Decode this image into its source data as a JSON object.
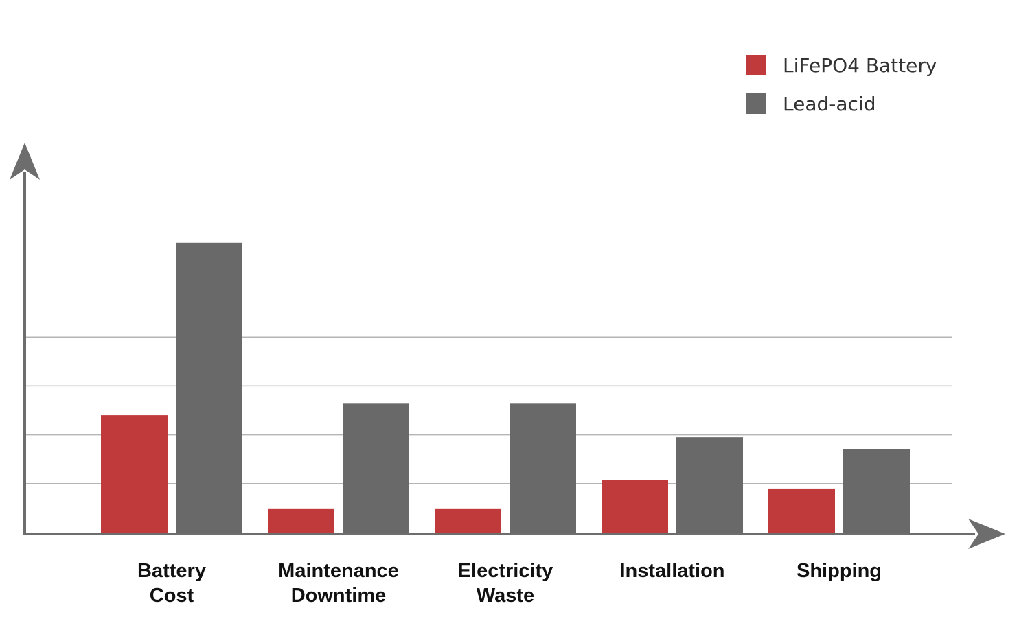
{
  "chart_data": {
    "type": "bar",
    "title": "",
    "xlabel": "",
    "ylabel": "",
    "categories": [
      [
        "Battery",
        "Cost"
      ],
      [
        "Maintenance",
        "Downtime"
      ],
      [
        "Electricity",
        "Waste"
      ],
      [
        "Installation"
      ],
      [
        "Shipping"
      ]
    ],
    "series": [
      {
        "name": "LiFePO4 Battery",
        "color": "#c0393b",
        "values": [
          2.4,
          0.48,
          0.48,
          1.07,
          0.9
        ]
      },
      {
        "name": "Lead-acid",
        "color": "#696969",
        "values": [
          5.93,
          2.65,
          2.65,
          1.95,
          1.7
        ]
      }
    ],
    "ylim": [
      0,
      8
    ],
    "grid_y": [
      1,
      2,
      3,
      4
    ],
    "y_ticks_labeled": false,
    "legend": "top-right",
    "axis_color": "#6d6d6d",
    "grid_color": "#b5b5b5"
  }
}
